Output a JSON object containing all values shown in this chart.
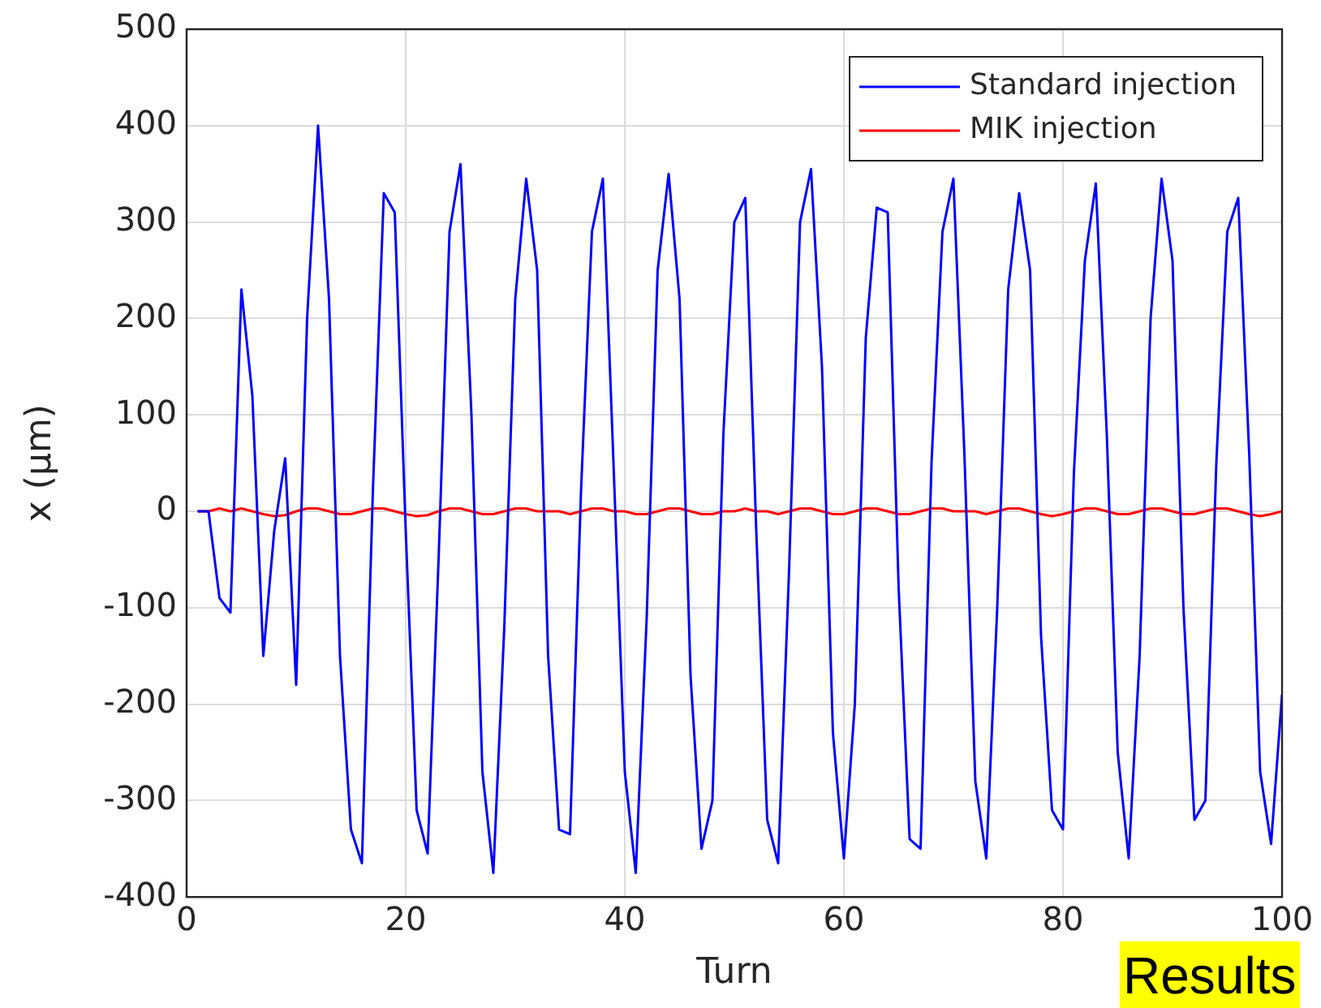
{
  "chart_data": {
    "type": "line",
    "xlabel": "Turn",
    "ylabel": "x (μm)",
    "xlim": [
      0,
      100
    ],
    "xticks": [
      0,
      20,
      40,
      60,
      80,
      100
    ],
    "ylim": [
      -400,
      500
    ],
    "yticks": [
      -400,
      -300,
      -200,
      -100,
      0,
      100,
      200,
      300,
      400,
      500
    ],
    "grid": true,
    "legend": "top right",
    "marker": "none",
    "line_style": "solid",
    "x": [
      1,
      2,
      3,
      4,
      5,
      6,
      7,
      8,
      9,
      10,
      11,
      12,
      13,
      14,
      15,
      16,
      17,
      18,
      19,
      20,
      21,
      22,
      23,
      24,
      25,
      26,
      27,
      28,
      29,
      30,
      31,
      32,
      33,
      34,
      35,
      36,
      37,
      38,
      39,
      40,
      41,
      42,
      43,
      44,
      45,
      46,
      47,
      48,
      49,
      50,
      51,
      52,
      53,
      54,
      55,
      56,
      57,
      58,
      59,
      60,
      61,
      62,
      63,
      64,
      65,
      66,
      67,
      68,
      69,
      70,
      71,
      72,
      73,
      74,
      75,
      76,
      77,
      78,
      79,
      80,
      81,
      82,
      83,
      84,
      85,
      86,
      87,
      88,
      89,
      90,
      91,
      92,
      93,
      94,
      95,
      96,
      97,
      98,
      99,
      100
    ],
    "series": [
      {
        "name": "Standard injection",
        "color": "#0000ff",
        "values": [
          0,
          0,
          -90,
          -105,
          230,
          120,
          -150,
          -20,
          55,
          -180,
          200,
          400,
          220,
          -150,
          -330,
          -365,
          20,
          330,
          310,
          -20,
          -310,
          -355,
          -50,
          290,
          360,
          100,
          -270,
          -375,
          -120,
          220,
          345,
          250,
          -150,
          -330,
          -335,
          20,
          290,
          345,
          40,
          -270,
          -375,
          -110,
          250,
          350,
          220,
          -170,
          -350,
          -300,
          80,
          300,
          325,
          -20,
          -320,
          -365,
          -60,
          300,
          355,
          150,
          -230,
          -360,
          -200,
          180,
          315,
          310,
          -80,
          -340,
          -350,
          50,
          290,
          345,
          60,
          -280,
          -360,
          -100,
          230,
          330,
          250,
          -130,
          -310,
          -330,
          40,
          260,
          340,
          80,
          -250,
          -360,
          -150,
          200,
          345,
          260,
          -100,
          -320,
          -300,
          50,
          290,
          325,
          60,
          -270,
          -345,
          -190
        ]
      },
      {
        "name": "MIK injection",
        "color": "#ff0000",
        "values": [
          0,
          0,
          3,
          0,
          3,
          0,
          -3,
          -5,
          -4,
          0,
          3,
          3,
          0,
          -3,
          -3,
          0,
          3,
          3,
          0,
          -3,
          -5,
          -4,
          0,
          3,
          3,
          0,
          -3,
          -3,
          0,
          3,
          3,
          0,
          0,
          0,
          -3,
          0,
          3,
          3,
          0,
          0,
          -3,
          -3,
          0,
          3,
          3,
          0,
          -3,
          -3,
          0,
          0,
          3,
          0,
          0,
          -3,
          0,
          3,
          3,
          0,
          -3,
          -3,
          0,
          3,
          3,
          0,
          -3,
          -3,
          0,
          3,
          3,
          0,
          0,
          0,
          -3,
          0,
          3,
          3,
          0,
          -3,
          -5,
          -3,
          0,
          3,
          3,
          0,
          -3,
          -3,
          0,
          3,
          3,
          0,
          -3,
          -3,
          0,
          3,
          3,
          0,
          -3,
          -5,
          -3,
          0
        ]
      }
    ],
    "annotations": [
      "Results"
    ]
  }
}
